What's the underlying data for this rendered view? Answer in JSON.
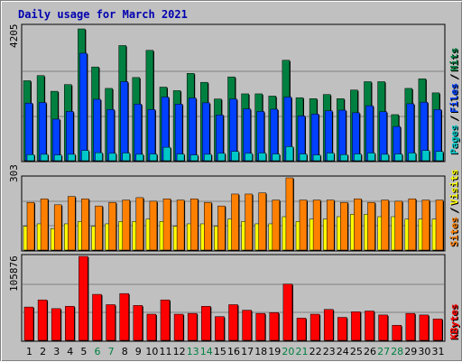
{
  "chart_data": [
    {
      "type": "bar",
      "title": "Daily usage for March 2021",
      "panel": "hits-files-pages",
      "ymax_label": "4205",
      "legend": [
        {
          "label": "Pages",
          "color": "#00c8c8"
        },
        {
          "label": "/",
          "color": "#000000"
        },
        {
          "label": "Files",
          "color": "#0040ff"
        },
        {
          "label": "/",
          "color": "#000000"
        },
        {
          "label": "Hits",
          "color": "#008040"
        }
      ],
      "categories": [
        "1",
        "2",
        "3",
        "4",
        "5",
        "6",
        "7",
        "8",
        "9",
        "10",
        "11",
        "12",
        "13",
        "14",
        "15",
        "16",
        "17",
        "18",
        "19",
        "20",
        "21",
        "22",
        "23",
        "24",
        "25",
        "26",
        "27",
        "28",
        "29",
        "30",
        "31"
      ],
      "weekend_days": [
        "6",
        "7",
        "13",
        "14",
        "20",
        "21",
        "27",
        "28"
      ],
      "ylim": [
        0,
        4205
      ],
      "series": [
        {
          "name": "Hits",
          "color": "#008040",
          "values": [
            2500,
            2660,
            2170,
            2380,
            4120,
            2930,
            2260,
            3600,
            2600,
            3450,
            2300,
            2190,
            2730,
            2450,
            1930,
            2620,
            2090,
            2090,
            2020,
            3140,
            1970,
            1940,
            2070,
            1940,
            2210,
            2470,
            2470,
            1440,
            2260,
            2560,
            2120
          ]
        },
        {
          "name": "Files",
          "color": "#0040ff",
          "values": [
            1800,
            1820,
            1300,
            1540,
            3360,
            1920,
            1600,
            2470,
            1770,
            1600,
            1990,
            1770,
            1960,
            1810,
            1430,
            1930,
            1620,
            1540,
            1610,
            1990,
            1400,
            1460,
            1560,
            1580,
            1500,
            1720,
            1530,
            1070,
            1780,
            1830,
            1600
          ]
        },
        {
          "name": "Pages",
          "color": "#00c8c8",
          "values": [
            190,
            200,
            180,
            200,
            320,
            250,
            230,
            240,
            200,
            210,
            420,
            210,
            180,
            200,
            230,
            290,
            230,
            240,
            210,
            440,
            210,
            180,
            240,
            190,
            210,
            240,
            200,
            210,
            240,
            320,
            290
          ]
        }
      ]
    },
    {
      "type": "bar",
      "panel": "visits-sites",
      "ymax_label": "303",
      "legend": [
        {
          "label": "Sites",
          "color": "#ff8000"
        },
        {
          "label": "/",
          "color": "#000000"
        },
        {
          "label": "Visits",
          "color": "#ffff00"
        }
      ],
      "categories": [
        "1",
        "2",
        "3",
        "4",
        "5",
        "6",
        "7",
        "8",
        "9",
        "10",
        "11",
        "12",
        "13",
        "14",
        "15",
        "16",
        "17",
        "18",
        "19",
        "20",
        "21",
        "22",
        "23",
        "24",
        "25",
        "26",
        "27",
        "28",
        "29",
        "30",
        "31"
      ],
      "ylim": [
        0,
        303
      ],
      "series": [
        {
          "name": "Visits",
          "color": "#ffff00",
          "values": [
            100,
            110,
            90,
            110,
            120,
            100,
            110,
            120,
            120,
            130,
            120,
            100,
            110,
            110,
            100,
            130,
            120,
            110,
            110,
            140,
            120,
            130,
            130,
            140,
            150,
            150,
            140,
            140,
            130,
            130,
            130
          ]
        },
        {
          "name": "Sites",
          "color": "#ff8000",
          "values": [
            200,
            215,
            190,
            225,
            215,
            185,
            200,
            210,
            220,
            205,
            215,
            210,
            215,
            200,
            185,
            235,
            235,
            240,
            210,
            303,
            210,
            210,
            210,
            200,
            215,
            200,
            210,
            205,
            215,
            210,
            210
          ]
        }
      ]
    },
    {
      "type": "bar",
      "panel": "kbytes",
      "ymax_label": "105876",
      "legend": [
        {
          "label": "KBytes",
          "color": "#ff0000"
        }
      ],
      "categories": [
        "1",
        "2",
        "3",
        "4",
        "5",
        "6",
        "7",
        "8",
        "9",
        "10",
        "11",
        "12",
        "13",
        "14",
        "15",
        "16",
        "17",
        "18",
        "19",
        "20",
        "21",
        "22",
        "23",
        "24",
        "25",
        "26",
        "27",
        "28",
        "29",
        "30",
        "31"
      ],
      "ylim": [
        0,
        105876
      ],
      "series": [
        {
          "name": "KBytes",
          "color": "#ff0000",
          "values": [
            42000,
            51000,
            40000,
            43000,
            105876,
            58000,
            45000,
            59000,
            44000,
            33000,
            51000,
            33000,
            34000,
            43000,
            30000,
            45000,
            38000,
            34000,
            35000,
            71000,
            28000,
            33000,
            39000,
            29000,
            36000,
            37000,
            32000,
            19000,
            34000,
            32000,
            27000
          ]
        }
      ]
    }
  ]
}
